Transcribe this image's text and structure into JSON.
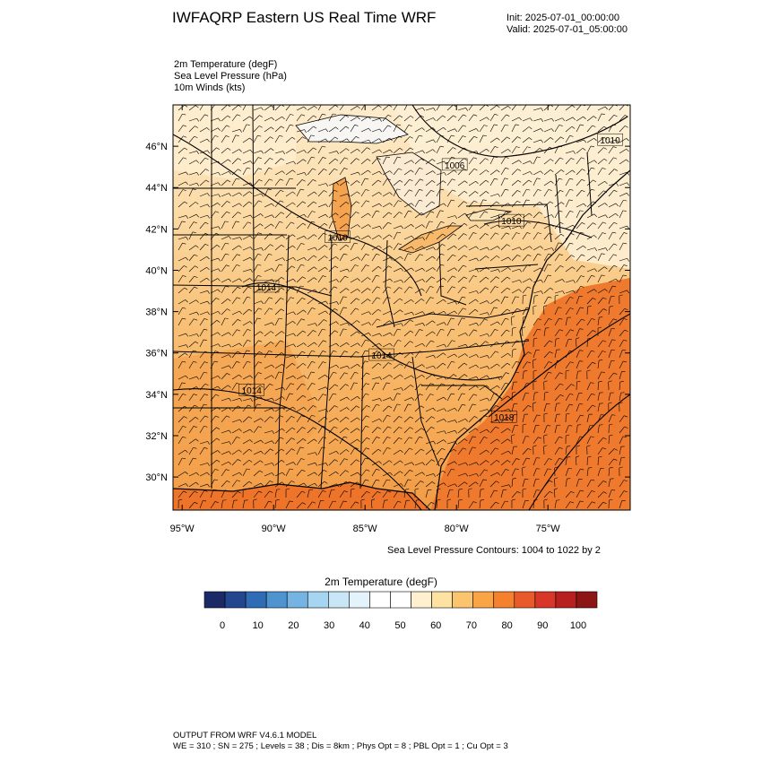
{
  "header": {
    "title": "IWFAQRP Eastern US Real Time WRF",
    "init": "Init: 2025-07-01_00:00:00",
    "valid": "Valid: 2025-07-01_05:00:00"
  },
  "fields": [
    "2m Temperature   (degF)",
    "Sea Level Pressure   (hPa)",
    "10m Winds   (kts)"
  ],
  "axes": {
    "lat_labels": [
      "46°N",
      "44°N",
      "42°N",
      "40°N",
      "38°N",
      "36°N",
      "34°N",
      "32°N",
      "30°N"
    ],
    "lat_values": [
      46,
      44,
      42,
      40,
      38,
      36,
      34,
      32,
      30
    ],
    "lon_labels": [
      "95°W",
      "90°W",
      "85°W",
      "80°W",
      "75°W"
    ],
    "lon_values": [
      -95,
      -90,
      -85,
      -80,
      -75
    ],
    "lat_range": [
      28.4,
      48.0
    ],
    "lon_range": [
      -95.5,
      -70.5
    ]
  },
  "pressure_labels": [
    {
      "text": "1010",
      "lon": -71.6,
      "lat": 46.3
    },
    {
      "text": "1006",
      "lon": -80.1,
      "lat": 45.1
    },
    {
      "text": "1010",
      "lon": -77.0,
      "lat": 42.4
    },
    {
      "text": "1010",
      "lon": -86.5,
      "lat": 41.6
    },
    {
      "text": "1014",
      "lon": -90.4,
      "lat": 39.2
    },
    {
      "text": "1014",
      "lon": -84.1,
      "lat": 35.9
    },
    {
      "text": "1014",
      "lon": -91.2,
      "lat": 34.2
    },
    {
      "text": "1018",
      "lon": -77.4,
      "lat": 32.9
    }
  ],
  "contour_note": "Sea Level Pressure Contours: 1004 to 1022 by 2",
  "colorbar": {
    "title": "2m Temperature  (degF)",
    "colors": [
      "#1b2a66",
      "#23478f",
      "#2f6cb5",
      "#4f93cf",
      "#75b4e2",
      "#a6d5f1",
      "#c9e6f6",
      "#e4f3fb",
      "#ffffff",
      "#ffffff",
      "#fff1cf",
      "#fde2a2",
      "#fbc56d",
      "#f9a546",
      "#f5812d",
      "#e95a2b",
      "#d83628",
      "#b7201f",
      "#8c1515"
    ],
    "labels": [
      "0",
      "10",
      "20",
      "30",
      "40",
      "50",
      "60",
      "70",
      "80",
      "90",
      "100"
    ]
  },
  "footer": {
    "line1": "OUTPUT FROM WRF V4.6.1 MODEL",
    "line2": "WE = 310 ; SN = 275 ; Levels = 38 ; Dis = 8km ; Phys Opt = 8 ; PBL Opt = 1 ; Cu Opt = 3"
  },
  "colors": {
    "cold": "#fdf1d6",
    "mild": "#fbd595",
    "warm": "#f8b563",
    "hot": "#f39a4a",
    "ocean": "#ef7a2e",
    "lake": "#ffffff"
  }
}
